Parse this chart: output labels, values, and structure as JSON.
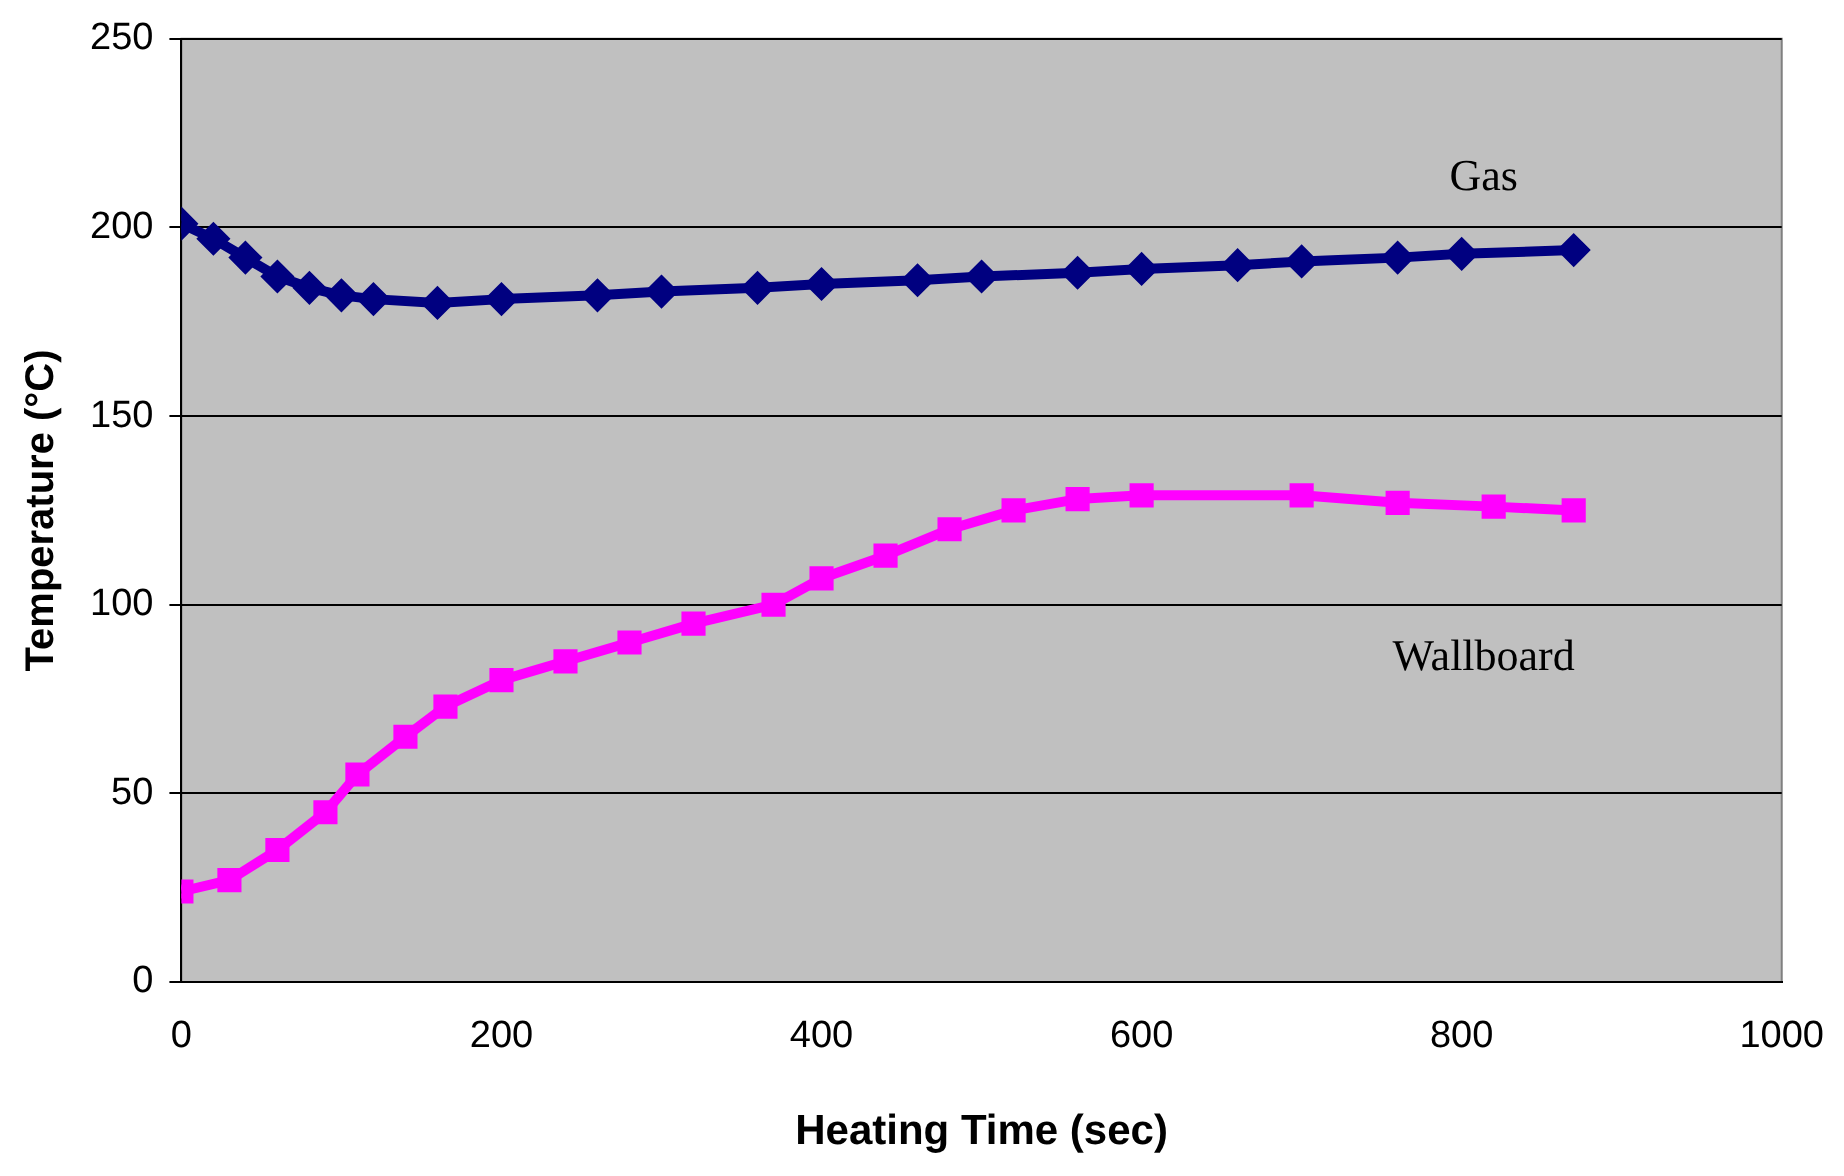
{
  "chart_data": {
    "type": "line",
    "xlabel": "Heating Time (sec)",
    "ylabel": "Temperature (°C)",
    "xlim": [
      0,
      1000
    ],
    "xticks": [
      0,
      200,
      400,
      600,
      800,
      1000
    ],
    "ylim": [
      0,
      250
    ],
    "yticks": [
      0,
      50,
      100,
      150,
      200,
      250
    ],
    "grid": "y",
    "legend": false,
    "series": [
      {
        "name": "Gas",
        "color": "#000080",
        "marker": "diamond",
        "x": [
          0,
          20,
          40,
          60,
          80,
          100,
          120,
          160,
          200,
          260,
          300,
          360,
          400,
          460,
          500,
          560,
          600,
          660,
          700,
          760,
          800,
          870
        ],
        "values": [
          201,
          197,
          192,
          187,
          184,
          182,
          181,
          180,
          181,
          182,
          183,
          184,
          185,
          186,
          187,
          188,
          189,
          190,
          191,
          192,
          193,
          194
        ]
      },
      {
        "name": "Wallboard",
        "color": "#ff00ff",
        "marker": "square",
        "x": [
          0,
          30,
          60,
          90,
          110,
          140,
          165,
          200,
          240,
          280,
          320,
          370,
          400,
          440,
          480,
          520,
          560,
          600,
          700,
          760,
          820,
          870
        ],
        "values": [
          24,
          27,
          35,
          45,
          55,
          65,
          73,
          80,
          85,
          90,
          95,
          100,
          107,
          113,
          120,
          125,
          128,
          129,
          129,
          127,
          126,
          125
        ]
      }
    ]
  }
}
